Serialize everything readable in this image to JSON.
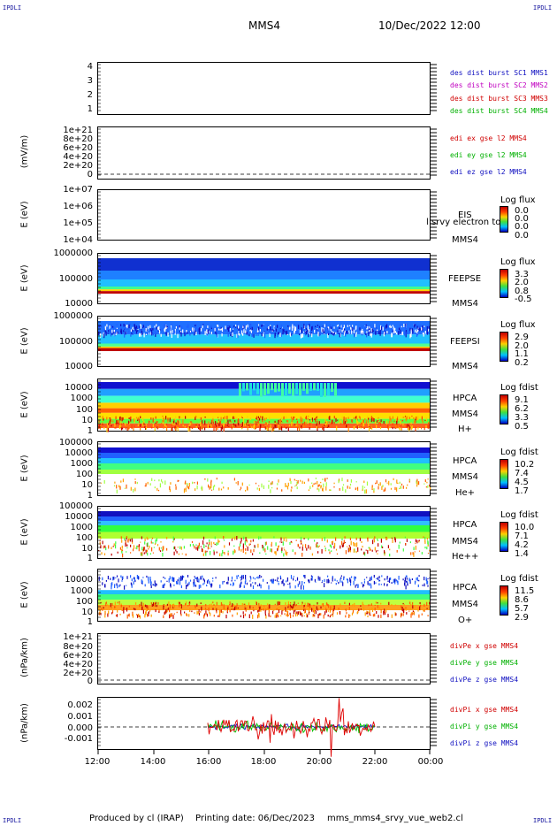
{
  "corner_label": "IPDLI",
  "header": {
    "spacecraft": "MMS4",
    "date": "10/Dec/2022 12:00"
  },
  "footer": {
    "produced": "Produced by cl (IRAP)",
    "printing": "Printing date: 06/Dec/2023",
    "file": "mms_mms4_srvy_vue_web2.cl"
  },
  "chart_data": {
    "type": "multi-panel time series",
    "xaxis": {
      "ticks": [
        "12:00",
        "14:00",
        "16:00",
        "18:00",
        "20:00",
        "22:00",
        "00:00"
      ]
    },
    "panels": [
      {
        "id": "burst",
        "ylabel": "",
        "yticks": [
          "4",
          "3",
          "2",
          "1"
        ],
        "legend": [
          {
            "text": "des dist burst SC1 MMS1",
            "color": "#1010c0"
          },
          {
            "text": "des dist burst SC2 MMS2",
            "color": "#c000c0"
          },
          {
            "text": "des dist burst SC3 MMS3",
            "color": "#d00000"
          },
          {
            "text": "des dist burst SC4 MMS4",
            "color": "#00b000"
          }
        ]
      },
      {
        "id": "edi",
        "ylabel": "(mV/m)",
        "yticks": [
          "1e+21",
          "8e+20",
          "6e+20",
          "4e+20",
          "2e+20",
          "0"
        ],
        "legend": [
          {
            "text": "edi ex gse l2 MMS4",
            "color": "#d00000"
          },
          {
            "text": "edi ey gse l2 MMS4",
            "color": "#00b000"
          },
          {
            "text": "edi ez gse l2 MMS4",
            "color": "#1010c0"
          }
        ]
      },
      {
        "id": "eis",
        "ylabel": "E (eV)",
        "yticks": [
          "1e+07",
          "1e+06",
          "1e+05",
          "1e+04"
        ],
        "instrument": [
          "EIS",
          "MMS4"
        ],
        "overlay": "l srvy electron to",
        "colorbar": {
          "title": "Log flux",
          "values": [
            "0.0",
            "0.0",
            "0.0",
            "0.0"
          ]
        }
      },
      {
        "id": "feepse",
        "ylabel": "E (eV)",
        "yticks": [
          "1000000",
          "100000",
          "10000"
        ],
        "instrument": [
          "FEEPSE",
          "MMS4"
        ],
        "colorbar": {
          "title": "Log flux",
          "values": [
            "3.3",
            "2.0",
            "0.8",
            "-0.5"
          ]
        }
      },
      {
        "id": "feepsi",
        "ylabel": "E (eV)",
        "yticks": [
          "1000000",
          "100000",
          "10000"
        ],
        "instrument": [
          "FEEPSI",
          "MMS4"
        ],
        "colorbar": {
          "title": "Log flux",
          "values": [
            "2.9",
            "2.0",
            "1.1",
            "0.2"
          ]
        }
      },
      {
        "id": "hpca_h",
        "ylabel": "E (eV)",
        "yticks": [
          "10000",
          "1000",
          "100",
          "10",
          "1"
        ],
        "instrument": [
          "HPCA",
          "MMS4",
          "H+"
        ],
        "colorbar": {
          "title": "Log fdist",
          "values": [
            "9.1",
            "6.2",
            "3.3",
            "0.5"
          ]
        }
      },
      {
        "id": "hpca_he",
        "ylabel": "E (eV)",
        "yticks": [
          "100000",
          "10000",
          "1000",
          "100",
          "10",
          "1"
        ],
        "instrument": [
          "HPCA",
          "MMS4",
          "He+"
        ],
        "colorbar": {
          "title": "Log fdist",
          "values": [
            "10.2",
            "7.4",
            "4.5",
            "1.7"
          ]
        }
      },
      {
        "id": "hpca_hepp",
        "ylabel": "E (eV)",
        "yticks": [
          "100000",
          "10000",
          "1000",
          "100",
          "10",
          "1"
        ],
        "instrument": [
          "HPCA",
          "MMS4",
          "He++"
        ],
        "colorbar": {
          "title": "Log fdist",
          "values": [
            "10.0",
            "7.1",
            "4.2",
            "1.4"
          ]
        }
      },
      {
        "id": "hpca_o",
        "ylabel": "E (eV)",
        "yticks": [
          "10000",
          "1000",
          "100",
          "10",
          "1"
        ],
        "instrument": [
          "HPCA",
          "MMS4",
          "O+"
        ],
        "colorbar": {
          "title": "Log fdist",
          "values": [
            "11.5",
            "8.6",
            "5.7",
            "2.9"
          ]
        }
      },
      {
        "id": "divpe",
        "ylabel": "(nPa/km)",
        "yticks": [
          "1e+21",
          "8e+20",
          "6e+20",
          "4e+20",
          "2e+20",
          "0"
        ],
        "legend": [
          {
            "text": "divPe x gse MMS4",
            "color": "#d00000"
          },
          {
            "text": "divPe y gse MMS4",
            "color": "#00b000"
          },
          {
            "text": "divPe z gse MMS4",
            "color": "#1010c0"
          }
        ]
      },
      {
        "id": "divpi",
        "ylabel": "(nPa/km)",
        "yticks": [
          "0.002",
          "0.001",
          "0.000",
          "-0.001"
        ],
        "legend": [
          {
            "text": "divPi x gse MMS4",
            "color": "#d00000"
          },
          {
            "text": "divPi y gse MMS4",
            "color": "#00b000"
          },
          {
            "text": "divPi z gse MMS4",
            "color": "#1010c0"
          }
        ]
      }
    ]
  }
}
